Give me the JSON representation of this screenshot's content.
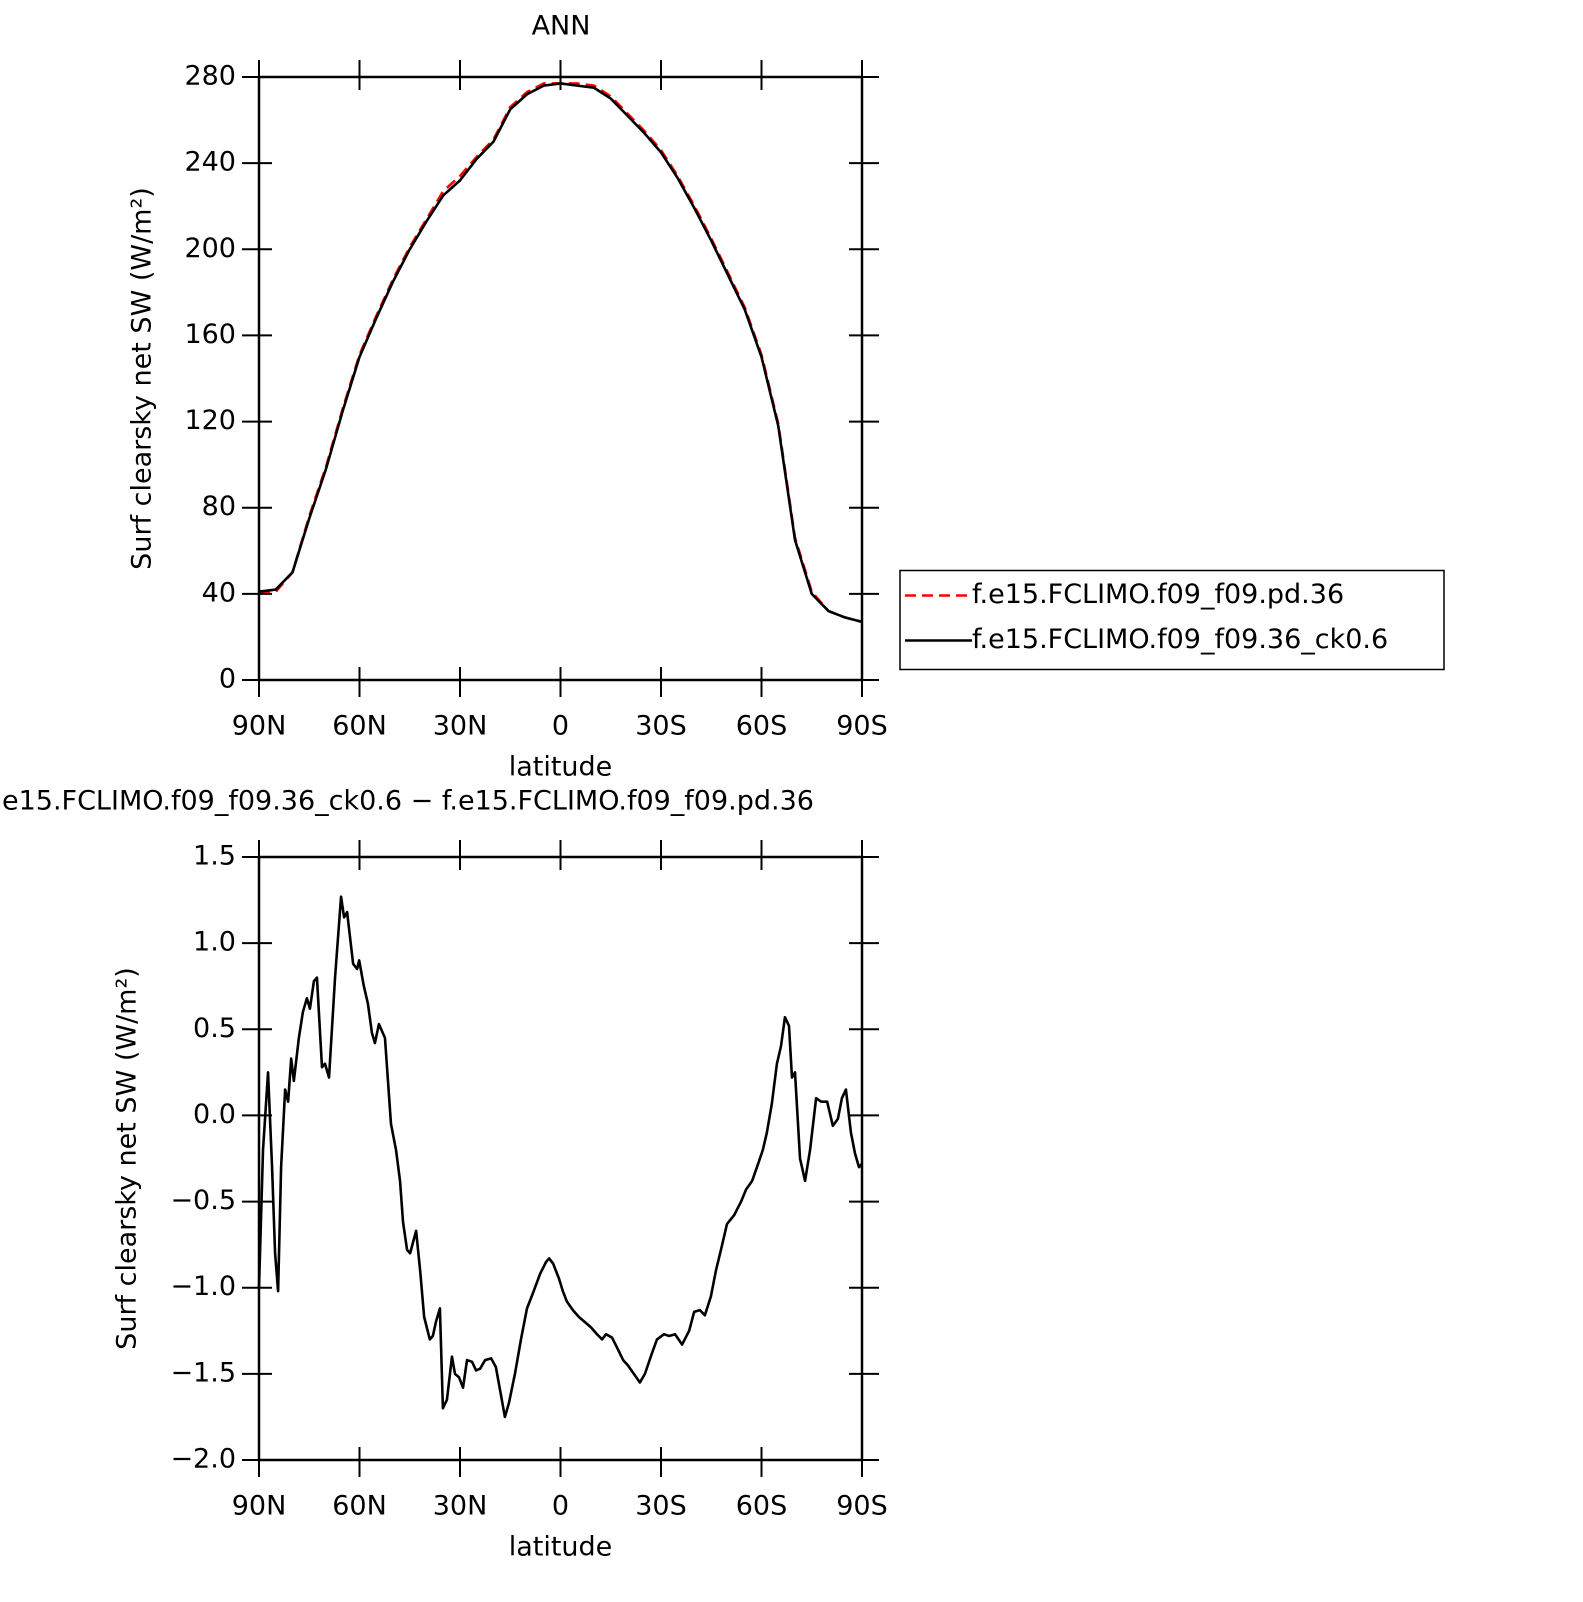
{
  "chart_data": [
    {
      "type": "line",
      "title": "ANN",
      "xlabel": "latitude",
      "ylabel": "Surf clearsky net SW (W/m²)",
      "x": [
        90,
        85,
        80,
        75,
        70,
        65,
        60,
        55,
        50,
        45,
        40,
        35,
        30,
        25,
        20,
        15,
        10,
        5,
        0,
        -5,
        -10,
        -15,
        -20,
        -25,
        -30,
        -35,
        -40,
        -45,
        -50,
        -55,
        -60,
        -65,
        -70,
        -75,
        -80,
        -85,
        -90
      ],
      "series": [
        {
          "name": "f.e15.FCLIMO.f09_f09.pd.36",
          "color": "#ff0000",
          "line_style": "dashed",
          "values": [
            41,
            41,
            50,
            76,
            99,
            126,
            151,
            169,
            186,
            201,
            214,
            227,
            234,
            243,
            251,
            266,
            273,
            277,
            277,
            277,
            276,
            271,
            263,
            255,
            246,
            234,
            220,
            205,
            189,
            173,
            151,
            119,
            66,
            41,
            32,
            29,
            27
          ]
        },
        {
          "name": "f.e15.FCLIMO.f09_f09.36_ck0.6",
          "color": "#000000",
          "line_style": "solid",
          "values": [
            41,
            42,
            50,
            75,
            98,
            125,
            150,
            168,
            185,
            200,
            213,
            225,
            232,
            242,
            250,
            265,
            272,
            276,
            277,
            276,
            275,
            270,
            262,
            254,
            245,
            233,
            219,
            204,
            188,
            172,
            150,
            118,
            65,
            40,
            32,
            29,
            27
          ]
        }
      ],
      "xlim": [
        90,
        -90
      ],
      "xticks": [
        {
          "value": 90,
          "label": "90N"
        },
        {
          "value": 60,
          "label": "60N"
        },
        {
          "value": 30,
          "label": "30N"
        },
        0,
        {
          "value": -30,
          "label": "30S"
        },
        {
          "value": -60,
          "label": "60S"
        },
        {
          "value": -90,
          "label": "90S"
        }
      ],
      "ylim": [
        0,
        280
      ],
      "yticks": [
        0,
        40,
        80,
        120,
        160,
        200,
        240,
        280
      ],
      "legend_position": "right"
    },
    {
      "type": "line",
      "title": "e15.FCLIMO.f09_f09.36_ck0.6 − f.e15.FCLIMO.f09_f09.pd.36",
      "xlabel": "latitude",
      "ylabel": "Surf clearsky net SW (W/m²)",
      "x": [
        90.0,
        88.8,
        87.3,
        86.1,
        85.2,
        84.3,
        83.4,
        82.2,
        81.3,
        80.4,
        79.6,
        78.1,
        76.9,
        75.7,
        74.8,
        73.6,
        72.7,
        71.2,
        70.3,
        69.1,
        67.3,
        65.5,
        64.6,
        63.7,
        61.9,
        60.7,
        60.1,
        58.7,
        57.5,
        56.3,
        55.4,
        54.2,
        52.4,
        50.6,
        49.1,
        47.9,
        47.0,
        45.8,
        44.9,
        43.1,
        41.9,
        40.7,
        39.0,
        38.1,
        37.2,
        36.0,
        35.1,
        33.9,
        32.4,
        31.5,
        30.3,
        29.1,
        27.9,
        26.4,
        25.2,
        24.0,
        22.5,
        20.7,
        19.3,
        17.8,
        16.6,
        15.4,
        13.6,
        11.8,
        10.0,
        8.2,
        6.1,
        4.3,
        3.4,
        2.2,
        0.4,
        -0.7,
        -1.9,
        -3.7,
        -5.5,
        -7.3,
        -9.1,
        -10.9,
        -12.4,
        -13.6,
        -15.4,
        -17.2,
        -18.7,
        -20.1,
        -21.9,
        -23.7,
        -25.2,
        -27.3,
        -28.8,
        -30.9,
        -32.4,
        -34.2,
        -36.3,
        -38.4,
        -39.9,
        -41.6,
        -43.1,
        -44.9,
        -46.4,
        -47.9,
        -49.7,
        -51.8,
        -53.9,
        -55.4,
        -57.2,
        -59.0,
        -60.4,
        -61.6,
        -63.1,
        -64.6,
        -65.8,
        -67.0,
        -68.2,
        -69.1,
        -70.0,
        -71.5,
        -73.0,
        -74.5,
        -76.3,
        -77.8,
        -79.6,
        -81.3,
        -82.8,
        -84.0,
        -85.2,
        -86.7,
        -87.9,
        -89.1,
        -90.0
      ],
      "values": [
        -1.0,
        -0.2,
        0.25,
        -0.3,
        -0.8,
        -1.02,
        -0.3,
        0.15,
        0.08,
        0.33,
        0.2,
        0.45,
        0.6,
        0.68,
        0.62,
        0.78,
        0.8,
        0.28,
        0.3,
        0.22,
        0.8,
        1.27,
        1.15,
        1.18,
        0.88,
        0.85,
        0.9,
        0.75,
        0.65,
        0.48,
        0.42,
        0.53,
        0.45,
        -0.05,
        -0.2,
        -0.38,
        -0.62,
        -0.78,
        -0.8,
        -0.67,
        -0.9,
        -1.17,
        -1.3,
        -1.28,
        -1.2,
        -1.12,
        -1.7,
        -1.65,
        -1.4,
        -1.5,
        -1.52,
        -1.58,
        -1.42,
        -1.43,
        -1.48,
        -1.47,
        -1.42,
        -1.41,
        -1.46,
        -1.62,
        -1.75,
        -1.67,
        -1.5,
        -1.3,
        -1.12,
        -1.03,
        -0.92,
        -0.85,
        -0.83,
        -0.86,
        -0.95,
        -1.02,
        -1.08,
        -1.13,
        -1.17,
        -1.2,
        -1.23,
        -1.27,
        -1.3,
        -1.27,
        -1.29,
        -1.36,
        -1.42,
        -1.45,
        -1.5,
        -1.55,
        -1.5,
        -1.38,
        -1.3,
        -1.27,
        -1.28,
        -1.27,
        -1.33,
        -1.25,
        -1.14,
        -1.13,
        -1.16,
        -1.05,
        -0.9,
        -0.78,
        -0.63,
        -0.58,
        -0.5,
        -0.43,
        -0.38,
        -0.28,
        -0.2,
        -0.1,
        0.07,
        0.3,
        0.4,
        0.57,
        0.52,
        0.22,
        0.25,
        -0.25,
        -0.38,
        -0.2,
        0.1,
        0.08,
        0.08,
        -0.06,
        -0.02,
        0.1,
        0.15,
        -0.1,
        -0.22,
        -0.3,
        -0.28
      ],
      "color": "#000000",
      "xlim": [
        90,
        -90
      ],
      "xticks": [
        {
          "value": 90,
          "label": "90N"
        },
        {
          "value": 60,
          "label": "60N"
        },
        {
          "value": 30,
          "label": "30N"
        },
        0,
        {
          "value": -30,
          "label": "30S"
        },
        {
          "value": -60,
          "label": "60S"
        },
        {
          "value": -90,
          "label": "90S"
        }
      ],
      "ylim": [
        -2.0,
        1.5
      ],
      "yticks": [
        {
          "value": -2.0,
          "label": "−2.0"
        },
        {
          "value": -1.5,
          "label": "−1.5"
        },
        {
          "value": -1.0,
          "label": "−1.0"
        },
        {
          "value": -0.5,
          "label": "−0.5"
        },
        {
          "value": 0.0,
          "label": "0.0"
        },
        0.5,
        {
          "value": 1.0,
          "label": "1.0"
        },
        1.5
      ]
    }
  ]
}
